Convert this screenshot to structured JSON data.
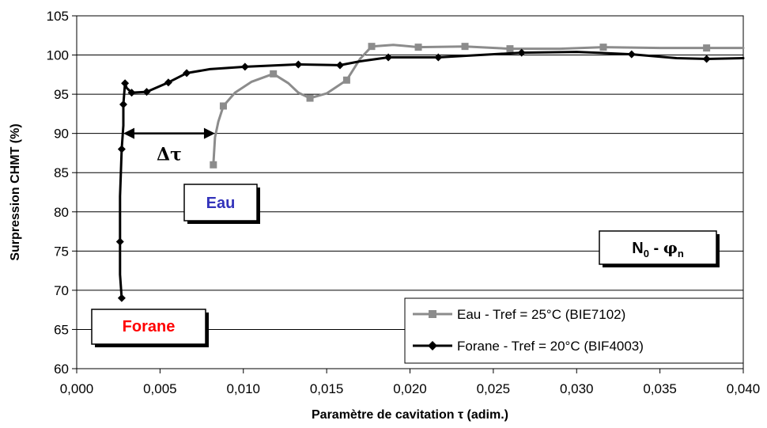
{
  "chart_data": {
    "type": "line",
    "xlabel": "Paramètre de cavitation τ (adim.)",
    "ylabel": "Surpression CHMT (%)",
    "xlim": [
      0,
      0.04
    ],
    "ylim": [
      60,
      105
    ],
    "x_ticks": [
      "0,000",
      "0,005",
      "0,010",
      "0,015",
      "0,020",
      "0,025",
      "0,030",
      "0,035",
      "0,040"
    ],
    "y_ticks": [
      "60",
      "65",
      "70",
      "75",
      "80",
      "85",
      "90",
      "95",
      "100",
      "105"
    ],
    "grid": "horizontal",
    "legend_position": "bottom-right",
    "series": [
      {
        "name": "Eau - Tref = 25°C (BIE7102)",
        "color": "#8c8c8c",
        "marker": "square",
        "x": [
          0.0082,
          0.0088,
          0.0118,
          0.014,
          0.0162,
          0.0177,
          0.0205,
          0.0233,
          0.026,
          0.0316,
          0.0378
        ],
        "y": [
          86.0,
          93.5,
          97.6,
          94.5,
          96.8,
          101.1,
          101.0,
          101.1,
          100.8,
          101.0,
          100.9
        ],
        "curve_x": [
          0.0082,
          0.0083,
          0.0085,
          0.0088,
          0.0095,
          0.0105,
          0.0118,
          0.0127,
          0.0133,
          0.014,
          0.015,
          0.0162,
          0.017,
          0.0177,
          0.019,
          0.0205,
          0.0233,
          0.026,
          0.029,
          0.0316,
          0.035,
          0.0378,
          0.04
        ],
        "curve_y": [
          86.0,
          89.5,
          91.5,
          93.5,
          95.2,
          96.6,
          97.6,
          96.4,
          95.2,
          94.5,
          95.1,
          96.8,
          99.5,
          101.1,
          101.3,
          101.0,
          101.1,
          100.8,
          100.8,
          101.0,
          100.9,
          100.9,
          100.9
        ]
      },
      {
        "name": "Forane - Tref = 20°C (BIF4003)",
        "color": "#000000",
        "marker": "diamond",
        "x": [
          0.0027,
          0.0026,
          0.0027,
          0.0028,
          0.0029,
          0.0033,
          0.0042,
          0.0055,
          0.0066,
          0.0101,
          0.0133,
          0.0158,
          0.0187,
          0.0217,
          0.0267,
          0.0333,
          0.0378
        ],
        "y": [
          69.0,
          76.2,
          88.0,
          93.7,
          96.4,
          95.2,
          95.3,
          96.5,
          97.7,
          98.5,
          98.8,
          98.7,
          99.7,
          99.7,
          100.3,
          100.1,
          99.5
        ],
        "curve_x": [
          0.0027,
          0.0026,
          0.0026,
          0.0026,
          0.0027,
          0.0028,
          0.0028,
          0.0029,
          0.003,
          0.0033,
          0.0042,
          0.0055,
          0.0066,
          0.008,
          0.0101,
          0.0133,
          0.0158,
          0.017,
          0.0187,
          0.0217,
          0.0267,
          0.03,
          0.0333,
          0.036,
          0.0378,
          0.04
        ],
        "curve_y": [
          69.0,
          72.0,
          76.2,
          82.0,
          88.0,
          91.0,
          93.7,
          96.4,
          95.8,
          95.2,
          95.3,
          96.5,
          97.7,
          98.2,
          98.5,
          98.8,
          98.7,
          99.2,
          99.7,
          99.7,
          100.3,
          100.4,
          100.1,
          99.6,
          99.5,
          99.6
        ]
      }
    ],
    "annotations": {
      "delta_tau": {
        "label": "Δτ",
        "x_start": 0.0028,
        "x_end": 0.0083,
        "y": 90.0
      },
      "eau_box": "Eau",
      "forane_box": "Forane",
      "regime_box": {
        "main": "N",
        "sub0": "0",
        "sep": " - ",
        "phi": "φ",
        "subn": "n"
      }
    },
    "colors": {
      "eau_label": "#3333bb",
      "forane_label": "#ff0000"
    }
  }
}
